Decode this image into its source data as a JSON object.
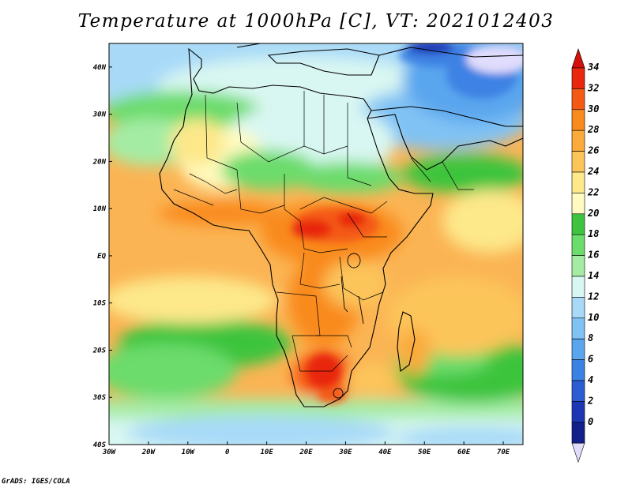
{
  "title": "Temperature at 1000hPa [C], VT: 2021012403",
  "credit": "GrADS: IGES/COLA",
  "map": {
    "region": "Africa",
    "lon_range": [
      -30,
      75
    ],
    "lat_range": [
      -40,
      45
    ],
    "lon_ticks": [
      "30W",
      "20W",
      "10W",
      "0",
      "10E",
      "20E",
      "30E",
      "40E",
      "50E",
      "60E",
      "70E"
    ],
    "lat_ticks": [
      "40N",
      "30N",
      "20N",
      "10N",
      "EQ",
      "10S",
      "20S",
      "30S",
      "40S"
    ]
  },
  "colorbar": {
    "labels": [
      "34",
      "32",
      "30",
      "28",
      "26",
      "24",
      "22",
      "20",
      "18",
      "16",
      "14",
      "12",
      "10",
      "8",
      "6",
      "4",
      "2",
      "0"
    ],
    "colors": [
      "#e8280f",
      "#f55a14",
      "#f98a1c",
      "#fbaa3c",
      "#fcc55a",
      "#fde88a",
      "#fffbc0",
      "#3ec43e",
      "#6cdc6c",
      "#a4eca4",
      "#d9f7f2",
      "#a8daf8",
      "#80c2f4",
      "#5aa6ee",
      "#3c82e4",
      "#2a5cd2",
      "#1c36b4",
      "#12208a"
    ],
    "top_arrow_color": "#d4100a",
    "bottom_arrow_color": "#e0dcfc"
  }
}
